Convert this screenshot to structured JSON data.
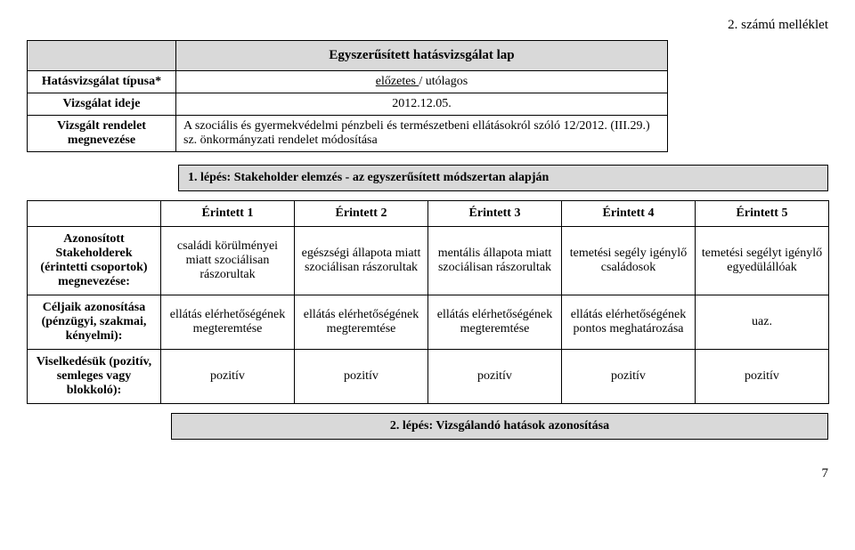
{
  "annex_label": "2. számú melléklet",
  "top": {
    "title": "Egyszerűsített hatásvizsgálat lap",
    "rows": [
      {
        "label": "Hatásvizsgálat típusa*",
        "value_pre": "előzetes ",
        "value_post": "/ utólagos"
      },
      {
        "label": "Vizsgálat ideje",
        "value": "2012.12.05."
      },
      {
        "label": "Vizsgált rendelet megnevezése",
        "value": "A szociális és gyermekvédelmi pénzbeli és természetbeni ellátásokról szóló 12/2012. (III.29.) sz. önkormányzati rendelet módosítása"
      }
    ]
  },
  "step1_label": "1. lépés: Stakeholder elemzés - az egyszerűsített módszertan alapján",
  "main": {
    "columns": [
      "Érintett 1",
      "Érintett 2",
      "Érintett 3",
      "Érintett 4",
      "Érintett 5"
    ],
    "rows": [
      {
        "head": "Azonosított Stakeholderek (érintetti csoportok) megnevezése:",
        "cells": [
          "családi körülményei miatt szociálisan rászorultak",
          "egészségi állapota miatt szociálisan rászorultak",
          "mentális állapota miatt szociálisan rászorultak",
          "temetési segély igénylő családosok",
          "temetési segélyt igénylő egyedülállóak"
        ]
      },
      {
        "head": "Céljaik azonosítása (pénzügyi, szakmai, kényelmi):",
        "cells": [
          "ellátás elérhetőségének megteremtése",
          "ellátás elérhetőségének megteremtése",
          "ellátás elérhetőségének megteremtése",
          "ellátás elérhetőségének pontos meghatározása",
          "uaz."
        ]
      },
      {
        "head": "Viselkedésük (pozitív, semleges vagy blokkoló):",
        "cells": [
          "pozitív",
          "pozitív",
          "pozitív",
          "pozitív",
          "pozitív"
        ]
      }
    ]
  },
  "step2_label": "2. lépés: Vizsgálandó hatások azonosítása",
  "page_number": "7"
}
